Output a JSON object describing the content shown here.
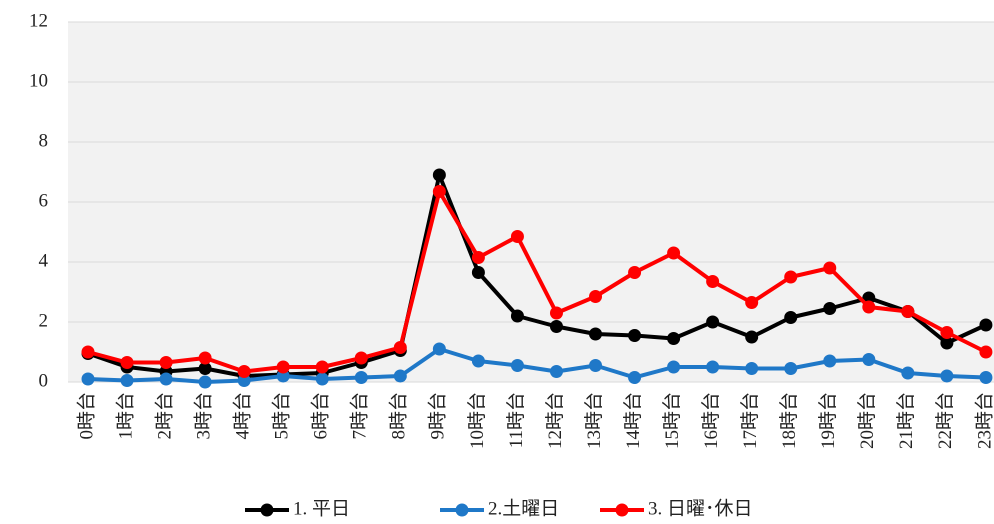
{
  "chart_data": {
    "type": "line",
    "categories": [
      "0時台",
      "1時台",
      "2時台",
      "3時台",
      "4時台",
      "5時台",
      "6時台",
      "7時台",
      "8時台",
      "9時台",
      "10時台",
      "11時台",
      "12時台",
      "13時台",
      "14時台",
      "15時台",
      "16時台",
      "17時台",
      "18時台",
      "19時台",
      "20時台",
      "21時台",
      "22時台",
      "23時台"
    ],
    "series": [
      {
        "name": "1. 平日",
        "color": "#000000",
        "values": [
          0.95,
          0.5,
          0.35,
          0.45,
          0.2,
          0.25,
          0.3,
          0.65,
          1.05,
          6.9,
          3.65,
          2.2,
          1.85,
          1.6,
          1.55,
          1.45,
          2.0,
          1.5,
          2.15,
          2.45,
          2.8,
          2.35,
          1.3,
          1.9
        ]
      },
      {
        "name": "2.土曜日",
        "color": "#1f78c8",
        "values": [
          0.1,
          0.05,
          0.1,
          0.0,
          0.05,
          0.2,
          0.1,
          0.15,
          0.2,
          1.1,
          0.7,
          0.55,
          0.35,
          0.55,
          0.15,
          0.5,
          0.5,
          0.45,
          0.45,
          0.7,
          0.75,
          0.3,
          0.2,
          0.15
        ]
      },
      {
        "name": "3. 日曜･休日",
        "color": "#ff0000",
        "values": [
          1.0,
          0.65,
          0.65,
          0.8,
          0.35,
          0.5,
          0.5,
          0.8,
          1.15,
          6.35,
          4.15,
          4.85,
          2.3,
          2.85,
          3.65,
          4.3,
          3.35,
          2.65,
          3.5,
          3.8,
          2.5,
          2.35,
          1.65,
          1.0
        ]
      }
    ],
    "ylim": [
      0,
      12
    ],
    "yticks": [
      0,
      2,
      4,
      6,
      8,
      10,
      12
    ],
    "grid": true,
    "legend": "bottom"
  }
}
